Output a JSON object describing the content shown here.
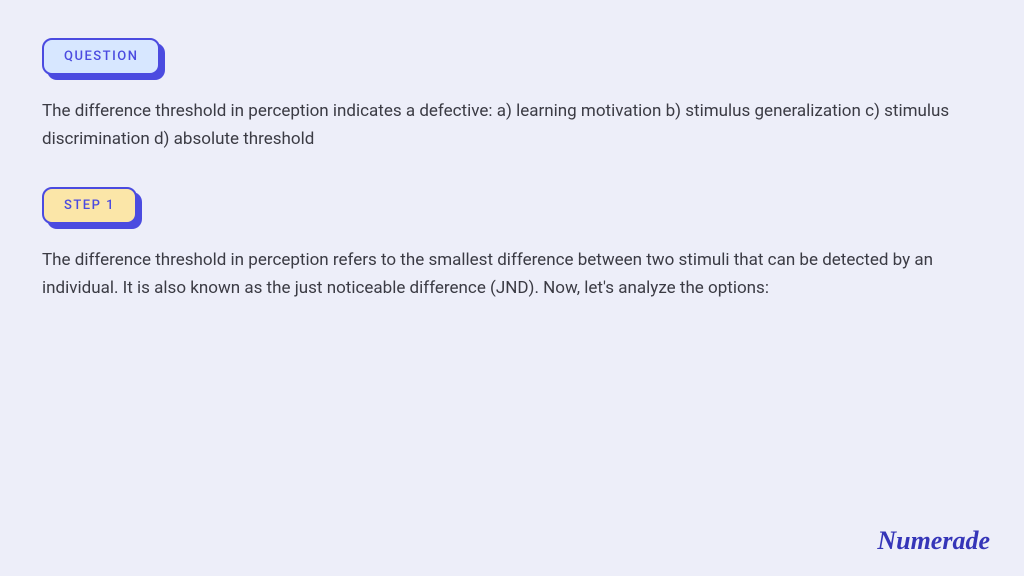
{
  "colors": {
    "page_bg": "#edeef9",
    "badge_border": "#4b4be0",
    "badge_shadow": "#4b4be0",
    "question_badge_bg": "#d7e7ff",
    "step_badge_bg": "#fbe6a8",
    "badge_text": "#4b4be0",
    "body_text": "#3b3b44",
    "logo_text": "#3535b8"
  },
  "typography": {
    "badge_fontsize": 13,
    "badge_letterspacing": 1.5,
    "body_fontsize": 17,
    "body_lineheight": 1.65,
    "logo_fontsize": 26
  },
  "question": {
    "badge_label": "QUESTION",
    "text": "The difference threshold in perception indicates a defective: a) learning motivation b) stimulus generalization c) stimulus discrimination d) absolute threshold"
  },
  "step1": {
    "badge_label": "STEP 1",
    "text": "The difference threshold in perception refers to the smallest difference between two stimuli that can be detected by an individual. It is also known as the just noticeable difference (JND). Now, let's analyze the options:"
  },
  "logo": "Numerade"
}
